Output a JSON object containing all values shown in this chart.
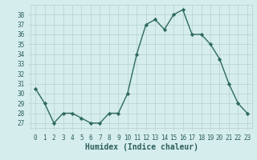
{
  "x": [
    0,
    1,
    2,
    3,
    4,
    5,
    6,
    7,
    8,
    9,
    10,
    11,
    12,
    13,
    14,
    15,
    16,
    17,
    18,
    19,
    20,
    21,
    22,
    23
  ],
  "y": [
    30.5,
    29,
    27,
    28,
    28,
    27.5,
    27,
    27,
    28,
    28,
    30,
    34,
    37,
    37.5,
    36.5,
    38,
    38.5,
    36,
    36,
    35,
    33.5,
    31,
    29,
    28
  ],
  "line_color": "#2e6b5e",
  "marker": "D",
  "marker_size": 2.2,
  "bg_color": "#d5eded",
  "grid_color": "#b8d0d0",
  "tick_label_color": "#2e5e5e",
  "xlabel": "Humidex (Indice chaleur)",
  "xlabel_color": "#2e5e5e",
  "ylim": [
    26.5,
    39
  ],
  "yticks": [
    27,
    28,
    29,
    30,
    31,
    32,
    33,
    34,
    35,
    36,
    37,
    38
  ],
  "xticks": [
    0,
    1,
    2,
    3,
    4,
    5,
    6,
    7,
    8,
    9,
    10,
    11,
    12,
    13,
    14,
    15,
    16,
    17,
    18,
    19,
    20,
    21,
    22,
    23
  ],
  "tick_fontsize": 5.5,
  "xlabel_fontsize": 7,
  "line_width": 1.0
}
